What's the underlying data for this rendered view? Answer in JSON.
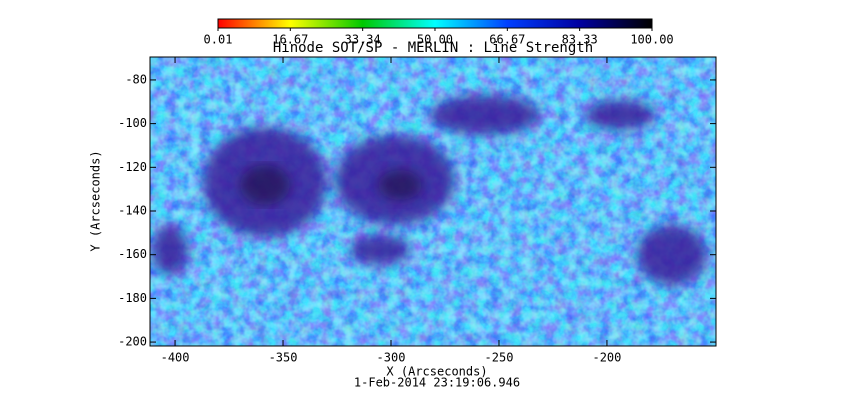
{
  "chart_data": {
    "type": "heatmap",
    "title": "Hinode SOT/SP - MERLIN : Line Strength",
    "x_label": "X (Arcseconds)",
    "y_label": "Y (Arcseconds)",
    "timestamp": "1-Feb-2014 23:19:06.946",
    "xlim": [
      -411.6,
      -149.5
    ],
    "xticks": [
      -400,
      -350,
      -300,
      -250,
      -200
    ],
    "ylim": [
      -201.8,
      -69.5
    ],
    "yticks": [
      -80,
      -100,
      -120,
      -140,
      -160,
      -180,
      -200
    ],
    "colorbar": {
      "lim": [
        0.01,
        100
      ],
      "ticks": [
        0.01,
        16.67,
        33.34,
        {
          "value": 50,
          "label": "50.00"
        },
        66.67,
        83.33,
        {
          "value": 100,
          "label": "100.00"
        }
      ],
      "colormap": [
        "#ff0000",
        "#ffff00",
        "#00c800",
        "#00ffff",
        "#0040ff",
        "#0000a0",
        "#000000"
      ]
    }
  }
}
